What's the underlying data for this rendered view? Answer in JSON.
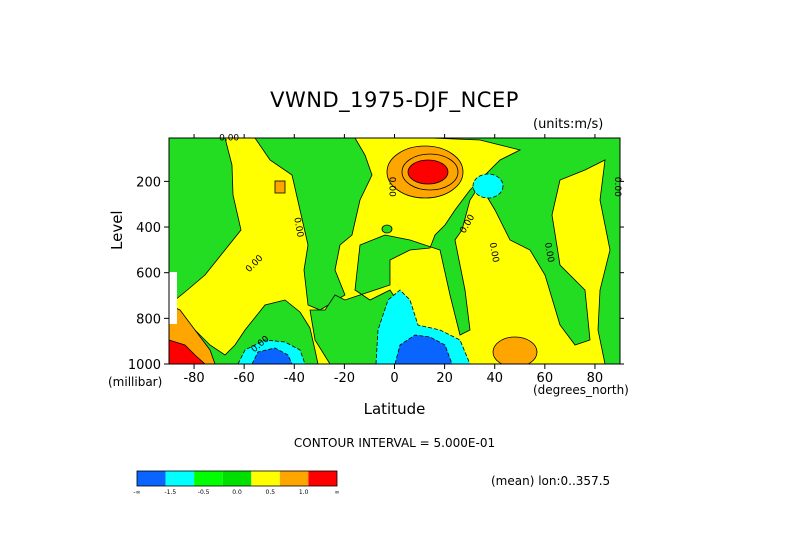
{
  "chart_data": {
    "type": "heatmap",
    "title": "VWND_1975-DJF_NCEP",
    "units_label": "(units:m/s)",
    "xlabel": "Latitude",
    "x_unit": "(degrees_north)",
    "ylabel": "Level",
    "y_unit": "(millibar)",
    "xlim": [
      -90,
      90
    ],
    "ylim": [
      1000,
      10
    ],
    "y_reversed": true,
    "x_ticks": [
      -80,
      -60,
      -40,
      -20,
      0,
      20,
      40,
      60,
      80
    ],
    "y_ticks": [
      200,
      400,
      600,
      800,
      1000
    ],
    "contour_interval_text": "CONTOUR INTERVAL = 5.000E-01",
    "contour_labels": [
      "0.00"
    ],
    "annotation": "(mean) lon:0..357.5",
    "colorbar": {
      "colors": [
        "#0a64ff",
        "#00ffff",
        "#00ff00",
        "#00e000",
        "#ffff00",
        "#ffa500",
        "#ff0000"
      ],
      "labels": [
        "-∞",
        "-1.5",
        "-0.5",
        "0.0",
        "0.5",
        "1.0",
        "∞"
      ]
    },
    "regions": [
      {
        "level": "0.0_to_0.5",
        "color": "#ffff00",
        "desc": "background yellow"
      },
      {
        "level": "-0.5_to_0.0",
        "color": "#22dd22"
      },
      {
        "level": "1.0_plus",
        "color": "#ff0000",
        "center": [
          10,
          160
        ]
      },
      {
        "level": "0.5_to_1.0",
        "color": "#ffa500",
        "center": [
          10,
          160
        ]
      },
      {
        "level": "-1.5_to_-0.5",
        "color": "#00ffff",
        "center": [
          8,
          850
        ]
      },
      {
        "level": "below_-1.5",
        "color": "#0a64ff",
        "center": [
          12,
          960
        ]
      },
      {
        "level": "below_-1.5",
        "color": "#0a64ff",
        "center": [
          -50,
          990
        ]
      },
      {
        "level": "1.0_plus",
        "color": "#ff0000",
        "center": [
          -85,
          990
        ]
      }
    ]
  }
}
